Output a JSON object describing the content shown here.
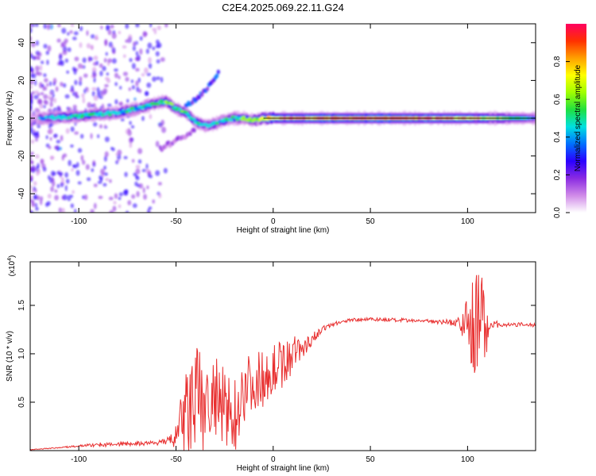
{
  "chart_data": [
    {
      "type": "heatmap",
      "title": "C2E4.2025.069.22.11.G24",
      "xlabel": "Height of straight line (km)",
      "ylabel": "Frequency (Hz)",
      "xlim": [
        -125,
        135
      ],
      "ylim": [
        -50,
        50
      ],
      "xticks": [
        -100,
        -50,
        0,
        50,
        100
      ],
      "yticks": [
        -40,
        -20,
        0,
        20,
        40
      ],
      "colorbar": {
        "label": "Normalized spectral amplitude",
        "range": [
          0,
          1
        ],
        "ticks": [
          "0.0",
          "0.2",
          "0.4",
          "0.6",
          "0.8"
        ],
        "colors": [
          "#ffffff",
          "#d08ae8",
          "#8a2be2",
          "#2a00ff",
          "#0070ff",
          "#00e0e0",
          "#20e040",
          "#a0ff00",
          "#ffff00",
          "#ffa000",
          "#ff3000",
          "#ff0060"
        ]
      },
      "ridge": {
        "x": [
          -125,
          -118,
          -110,
          -100,
          -90,
          -80,
          -70,
          -60,
          -55,
          -50,
          -45,
          -40,
          -35,
          -30,
          -25,
          -20,
          -15,
          -10,
          -5,
          0,
          20,
          50,
          100,
          135
        ],
        "y": [
          0,
          0,
          0.5,
          1,
          2,
          3,
          5,
          8,
          9,
          5,
          3,
          -2,
          -4,
          -3,
          -1,
          0,
          0,
          -1,
          0,
          0,
          0,
          0,
          0,
          0
        ],
        "peak_amplitude": [
          0.35,
          0.4,
          0.45,
          0.5,
          0.5,
          0.45,
          0.45,
          0.5,
          0.55,
          0.5,
          0.55,
          0.5,
          0.45,
          0.45,
          0.45,
          0.5,
          0.55,
          0.6,
          0.7,
          0.8,
          0.9,
          0.95,
          0.85,
          0.4
        ]
      },
      "branch": {
        "x": [
          -45,
          -40,
          -35,
          -30,
          -28
        ],
        "y": [
          6,
          10,
          15,
          20,
          24
        ]
      },
      "outer_branch": {
        "x": [
          -58,
          -50,
          -45,
          -40
        ],
        "y": [
          -16,
          -12,
          -9,
          -6
        ]
      }
    },
    {
      "type": "line",
      "xlabel": "Height of straight line (km)",
      "ylabel": "SNR (10 * v/v)",
      "scale_label": "(x10",
      "scale_exponent": "4",
      "scale_suffix": ")",
      "xlim": [
        -125,
        135
      ],
      "ylim": [
        0,
        1.95
      ],
      "xticks": [
        -100,
        -50,
        0,
        50,
        100
      ],
      "yticks": [
        "0.5",
        "1.0",
        "1.5"
      ],
      "ytick_values": [
        0.5,
        1.0,
        1.5
      ],
      "color": "#e83030",
      "x": [
        -125,
        -110,
        -100,
        -90,
        -80,
        -70,
        -60,
        -55,
        -50,
        -45,
        -40,
        -35,
        -30,
        -25,
        -20,
        -15,
        -10,
        -5,
        0,
        5,
        10,
        15,
        20,
        25,
        30,
        40,
        50,
        60,
        70,
        80,
        90,
        95,
        100,
        105,
        108,
        112,
        118,
        125,
        135
      ],
      "y": [
        0.01,
        0.03,
        0.05,
        0.06,
        0.07,
        0.07,
        0.08,
        0.09,
        0.14,
        0.35,
        0.5,
        0.48,
        0.5,
        0.4,
        0.35,
        0.65,
        0.7,
        0.75,
        0.85,
        0.9,
        1.0,
        1.05,
        1.15,
        1.25,
        1.3,
        1.35,
        1.36,
        1.35,
        1.34,
        1.34,
        1.33,
        1.32,
        1.3,
        1.3,
        1.3,
        1.31,
        1.3,
        1.3,
        1.3
      ],
      "noise": [
        0,
        0,
        0.01,
        0.02,
        0.02,
        0.02,
        0.02,
        0.03,
        0.12,
        0.5,
        0.6,
        0.55,
        0.5,
        0.45,
        0.4,
        0.35,
        0.3,
        0.3,
        0.25,
        0.25,
        0.2,
        0.12,
        0.06,
        0.03,
        0.02,
        0.02,
        0.02,
        0.02,
        0.02,
        0.02,
        0.03,
        0.05,
        0.3,
        0.6,
        0.5,
        0.05,
        0.02,
        0.02,
        0.02
      ]
    }
  ]
}
